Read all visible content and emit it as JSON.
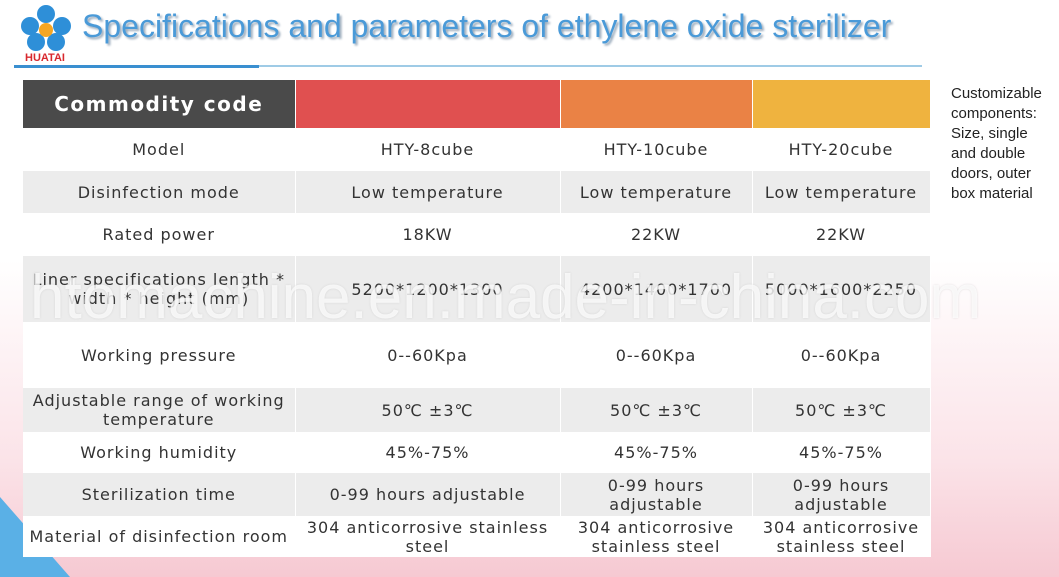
{
  "header": {
    "logo": "HUATAI",
    "title": "Specifications and parameters of ethylene oxide sterilizer"
  },
  "table": {
    "header_label": "Commodity code",
    "rows": [
      [
        "Model",
        "HTY-8cube",
        "HTY-10cube",
        "HTY-20cube"
      ],
      [
        "Disinfection mode",
        "Low temperature",
        "Low temperature",
        "Low temperature"
      ],
      [
        "Rated power",
        "18KW",
        "22KW",
        "22KW"
      ],
      [
        "Liner specifications length * width * height (mm)",
        "5200*1200*1300",
        "4200*1400*1700",
        "5000*1600*2250"
      ],
      [
        "Working pressure",
        "0--60Kpa",
        "0--60Kpa",
        "0--60Kpa"
      ],
      [
        "Adjustable range of working temperature",
        "50℃ ±3℃",
        "50℃ ±3℃",
        "50℃ ±3℃"
      ],
      [
        "Working humidity",
        "45%-75%",
        "45%-75%",
        "45%-75%"
      ],
      [
        "Sterilization time",
        "0-99 hours adjustable",
        "0-99 hours adjustable",
        "0-99 hours adjustable"
      ],
      [
        "Material of disinfection room",
        "304 anticorrosive stainless steel",
        "304 anticorrosive stainless steel",
        "304 anticorrosive stainless steel"
      ]
    ]
  },
  "side_note": "Customizable components: Size, single and double doors, outer box material",
  "watermark": "htomachine.en.made-in-china.com"
}
